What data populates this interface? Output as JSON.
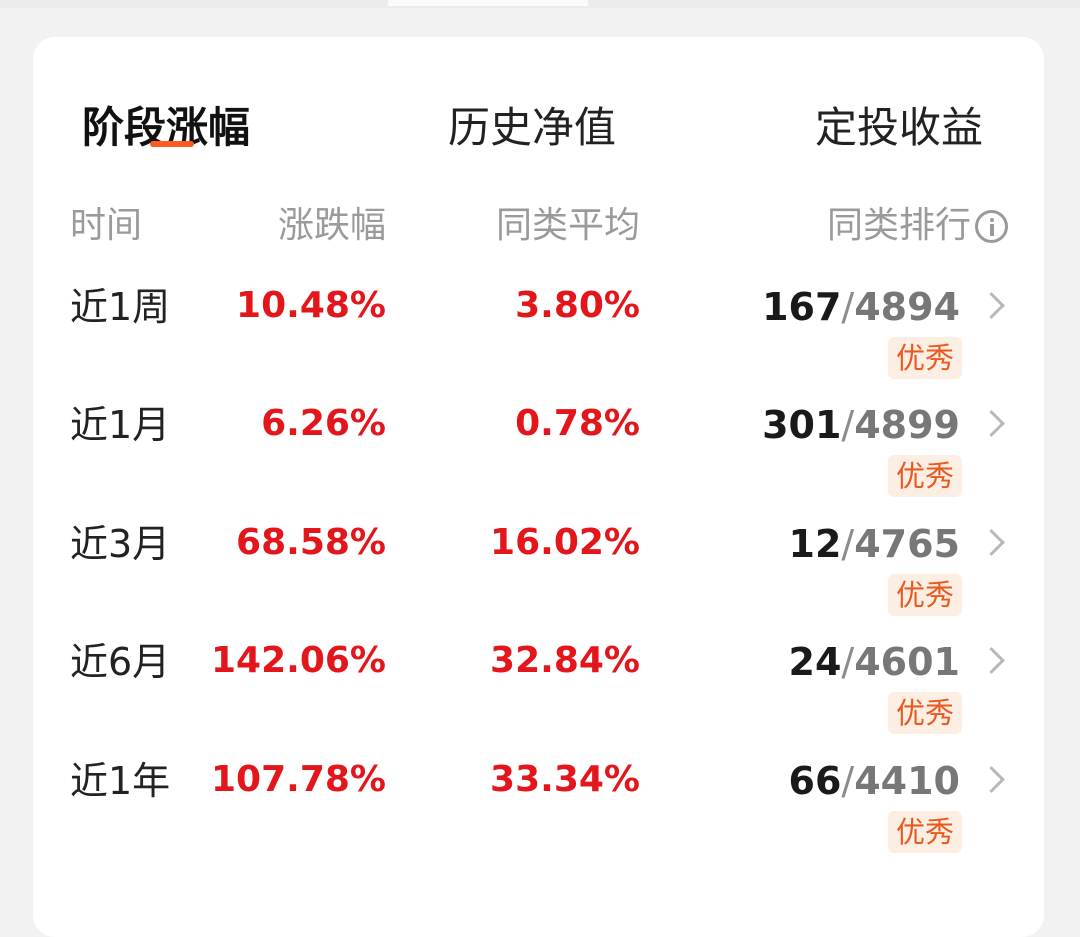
{
  "tabs": [
    {
      "label": "阶段涨幅",
      "active": true
    },
    {
      "label": "历史净值",
      "active": false
    },
    {
      "label": "定投收益",
      "active": false
    }
  ],
  "columns": {
    "time": "时间",
    "change": "涨跌幅",
    "avg": "同类平均",
    "rank": "同类排行"
  },
  "rows": [
    {
      "period": "近1周",
      "change": "10.48%",
      "avg": "3.80%",
      "rank": "167",
      "slash": "/",
      "total": "4894",
      "badge": "优秀"
    },
    {
      "period": "近1月",
      "change": "6.26%",
      "avg": "0.78%",
      "rank": "301",
      "slash": "/",
      "total": "4899",
      "badge": "优秀"
    },
    {
      "period": "近3月",
      "change": "68.58%",
      "avg": "16.02%",
      "rank": "12",
      "slash": "/",
      "total": "4765",
      "badge": "优秀"
    },
    {
      "period": "近6月",
      "change": "142.06%",
      "avg": "32.84%",
      "rank": "24",
      "slash": "/",
      "total": "4601",
      "badge": "优秀"
    },
    {
      "period": "近1年",
      "change": "107.78%",
      "avg": "33.34%",
      "rank": "66",
      "slash": "/",
      "total": "4410",
      "badge": "优秀"
    }
  ],
  "colors": {
    "accent": "#ff5a1f",
    "positive": "#e3161b",
    "badge_bg": "#fdeee4",
    "badge_text": "#e85a1f"
  }
}
